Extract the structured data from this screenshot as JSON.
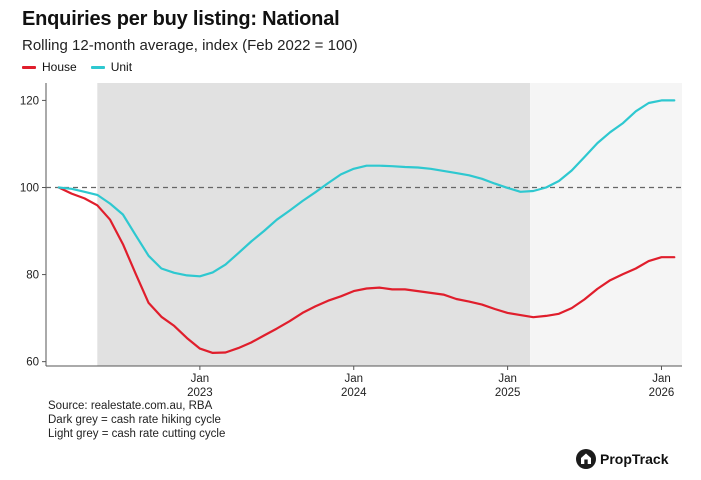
{
  "title": "Enquiries per buy listing: National",
  "subtitle": "Rolling 12-month average, index (Feb 2022 = 100)",
  "source_lines": [
    "Source: realestate.com.au, RBA",
    "Dark grey = cash rate hiking cycle",
    "Light grey = cash rate cutting cycle"
  ],
  "brand": "PropTrack",
  "colors": {
    "house": "#e01e2c",
    "unit": "#2ec8d0",
    "hiking": "#e1e1e1",
    "cutting": "#f5f5f5"
  },
  "chart_data": {
    "type": "line",
    "title": "Enquiries per buy listing: National",
    "ylabel": "Rolling 12-month average, index (Feb 2022 = 100)",
    "xlabel": "",
    "x_start": "Feb 2022",
    "x_end": "Feb 2026",
    "xlim_months": [
      -1,
      48.6
    ],
    "ylim": [
      59,
      124
    ],
    "yticks": [
      60,
      80,
      100,
      120
    ],
    "xticks": [
      {
        "m": 11,
        "line1": "Jan",
        "line2": "2023"
      },
      {
        "m": 23,
        "line1": "Jan",
        "line2": "2024"
      },
      {
        "m": 35,
        "line1": "Jan",
        "line2": "2025"
      },
      {
        "m": 47,
        "line1": "Jan",
        "line2": "2026"
      }
    ],
    "reference_line": 100,
    "shading": [
      {
        "label": "cash rate hiking cycle",
        "from_month": 3,
        "to_month": 36.75,
        "style": "hiking"
      },
      {
        "label": "cash rate cutting cycle",
        "from_month": 36.75,
        "to_month": 48.6,
        "style": "cutting"
      }
    ],
    "months": [
      0,
      1,
      2,
      3,
      4,
      5,
      6,
      7,
      8,
      9,
      10,
      11,
      12,
      13,
      14,
      15,
      16,
      17,
      18,
      19,
      20,
      21,
      22,
      23,
      24,
      25,
      26,
      27,
      28,
      29,
      30,
      31,
      32,
      33,
      34,
      35,
      36,
      37,
      38,
      39,
      40,
      41,
      42,
      43,
      44,
      45,
      46,
      47,
      48
    ],
    "series": [
      {
        "name": "House",
        "color_key": "house",
        "values": [
          100,
          98.6,
          97.5,
          95.9,
          92.6,
          87.0,
          80.1,
          73.5,
          70.3,
          68.2,
          65.4,
          63.0,
          62.0,
          62.1,
          63.1,
          64.4,
          66.0,
          67.6,
          69.3,
          71.2,
          72.7,
          74.0,
          75.0,
          76.2,
          76.8,
          77.0,
          76.6,
          76.6,
          76.2,
          75.8,
          75.4,
          74.4,
          73.8,
          73.1,
          72.1,
          71.2,
          70.7,
          70.2,
          70.5,
          71.0,
          72.3,
          74.3,
          76.7,
          78.7,
          80.1,
          81.4,
          83.1,
          84.0,
          84.0
        ]
      },
      {
        "name": "Unit",
        "color_key": "unit",
        "values": [
          100,
          99.7,
          99.0,
          98.3,
          96.3,
          93.8,
          89.0,
          84.3,
          81.4,
          80.4,
          79.8,
          79.6,
          80.5,
          82.3,
          84.9,
          87.6,
          90.0,
          92.6,
          94.7,
          96.9,
          98.9,
          101.0,
          103.0,
          104.3,
          105.0,
          105.0,
          104.9,
          104.7,
          104.6,
          104.3,
          103.8,
          103.3,
          102.8,
          102.0,
          100.9,
          99.9,
          99.0,
          99.2,
          100.0,
          101.5,
          103.9,
          107.0,
          110.2,
          112.7,
          114.8,
          117.5,
          119.4,
          120.0,
          120.0
        ]
      }
    ]
  }
}
